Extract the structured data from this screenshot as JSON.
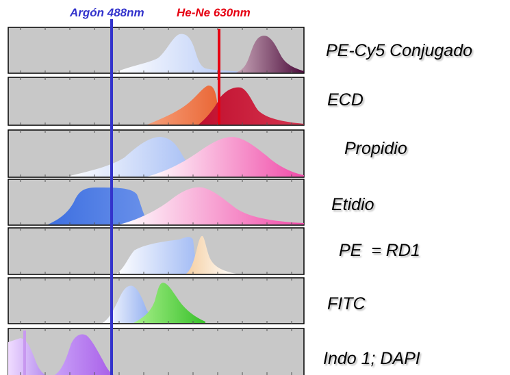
{
  "lasers": [
    {
      "label": "Argón 488nm",
      "color": "#3333cc"
    },
    {
      "label": "He-Ne 630nm",
      "color": "#e60012"
    }
  ],
  "dyes": [
    {
      "label": "PE-Cy5 Conjugado"
    },
    {
      "label": "ECD"
    },
    {
      "label": "Propidio"
    },
    {
      "label": "Etidio"
    },
    {
      "label": "PE  = RD1"
    },
    {
      "label": "FITC"
    },
    {
      "label": "Indo 1; DAPI"
    }
  ],
  "colors": {
    "panel_background": "#c8c8c8",
    "panel_border": "#000000"
  }
}
